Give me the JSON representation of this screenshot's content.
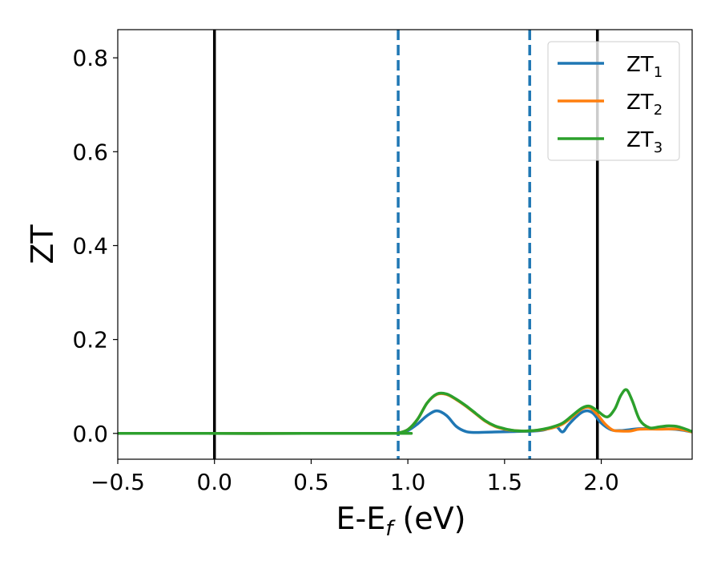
{
  "chart_data": {
    "type": "line",
    "xlabel_main": "E-E",
    "xlabel_sub": "f",
    "xlabel_unit": " (eV)",
    "ylabel": "ZT",
    "xlim": [
      -0.5,
      2.47
    ],
    "ylim": [
      -0.055,
      0.86
    ],
    "xticks": [
      -0.5,
      0.0,
      0.5,
      1.0,
      1.5,
      2.0
    ],
    "xtick_labels": [
      "−0.5",
      "0.0",
      "0.5",
      "1.0",
      "1.5",
      "2.0"
    ],
    "yticks": [
      0.0,
      0.2,
      0.4,
      0.6,
      0.8
    ],
    "ytick_labels": [
      "0.0",
      "0.2",
      "0.4",
      "0.6",
      "0.8"
    ],
    "grid": false,
    "legend_position": "top-right",
    "vlines": [
      {
        "x": 0.0,
        "style": "solid",
        "color": "#000000"
      },
      {
        "x": 1.98,
        "style": "solid",
        "color": "#000000"
      },
      {
        "x": 0.95,
        "style": "dashed",
        "color": "#1f77b4"
      },
      {
        "x": 1.63,
        "style": "dashed",
        "color": "#1f77b4"
      }
    ],
    "series": [
      {
        "name": "ZT",
        "sub": "1",
        "color": "#1f77b4",
        "x": [
          -0.5,
          0.9,
          0.95,
          1.0,
          1.05,
          1.1,
          1.15,
          1.2,
          1.25,
          1.3,
          1.35,
          1.45,
          1.55,
          1.65,
          1.7,
          1.74,
          1.77,
          1.8,
          1.83,
          1.87,
          1.9,
          1.93,
          1.96,
          2.0,
          2.05,
          2.1,
          2.2,
          2.3,
          2.4,
          2.47
        ],
        "y": [
          0.0,
          0.0,
          0.001,
          0.006,
          0.02,
          0.038,
          0.048,
          0.038,
          0.015,
          0.004,
          0.002,
          0.003,
          0.004,
          0.005,
          0.007,
          0.012,
          0.014,
          0.003,
          0.018,
          0.035,
          0.045,
          0.048,
          0.042,
          0.022,
          0.008,
          0.006,
          0.01,
          0.01,
          0.008,
          0.003
        ]
      },
      {
        "name": "ZT",
        "sub": "2",
        "color": "#ff7f0e",
        "x": [
          -0.5,
          0.9,
          0.95,
          1.0,
          1.05,
          1.1,
          1.15,
          1.2,
          1.25,
          1.3,
          1.35,
          1.4,
          1.45,
          1.5,
          1.55,
          1.6,
          1.65,
          1.7,
          1.75,
          1.8,
          1.85,
          1.9,
          1.94,
          1.98,
          2.02,
          2.06,
          2.1,
          2.15,
          2.2,
          2.3,
          2.4,
          2.47
        ],
        "y": [
          0.0,
          0.0,
          0.001,
          0.008,
          0.03,
          0.065,
          0.083,
          0.083,
          0.072,
          0.058,
          0.042,
          0.026,
          0.015,
          0.009,
          0.006,
          0.005,
          0.006,
          0.008,
          0.012,
          0.02,
          0.035,
          0.052,
          0.055,
          0.04,
          0.02,
          0.007,
          0.005,
          0.005,
          0.009,
          0.009,
          0.009,
          0.003
        ]
      },
      {
        "name": "ZT",
        "sub": "3",
        "color": "#2ca02c",
        "x": [
          -0.5,
          0.9,
          0.95,
          1.0,
          1.05,
          1.1,
          1.15,
          1.2,
          1.25,
          1.3,
          1.35,
          1.4,
          1.45,
          1.5,
          1.55,
          1.6,
          1.65,
          1.7,
          1.75,
          1.8,
          1.85,
          1.9,
          1.94,
          1.98,
          2.03,
          2.07,
          2.1,
          2.13,
          2.16,
          2.2,
          2.25,
          2.3,
          2.35,
          2.4,
          2.47
        ],
        "y": [
          0.0,
          0.0,
          0.001,
          0.008,
          0.03,
          0.065,
          0.084,
          0.084,
          0.073,
          0.059,
          0.043,
          0.027,
          0.016,
          0.01,
          0.006,
          0.005,
          0.006,
          0.009,
          0.014,
          0.022,
          0.038,
          0.054,
          0.058,
          0.048,
          0.035,
          0.052,
          0.08,
          0.093,
          0.07,
          0.028,
          0.012,
          0.014,
          0.016,
          0.014,
          0.004
        ]
      }
    ]
  }
}
